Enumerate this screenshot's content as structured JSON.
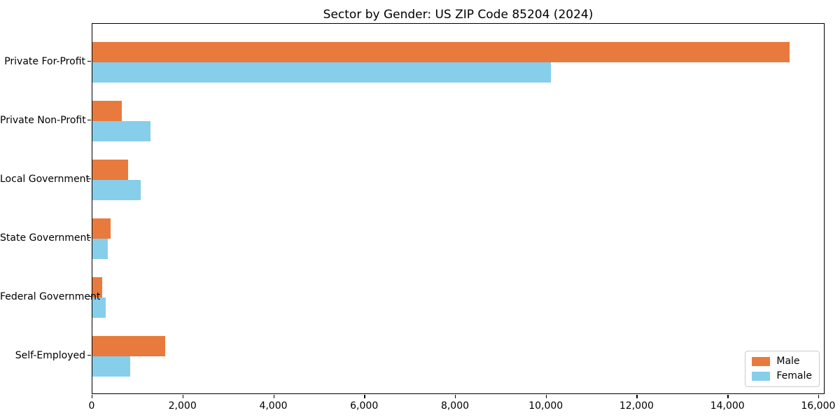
{
  "chart_data": {
    "type": "bar",
    "orientation": "horizontal",
    "title": "Sector by Gender: US ZIP Code 85204 (2024)",
    "categories": [
      "Private For-Profit",
      "Private Non-Profit",
      "Local Government",
      "State Government",
      "Federal Government",
      "Self-Employed"
    ],
    "series": [
      {
        "name": "Male",
        "color": "#E87A3D",
        "values": [
          15350,
          650,
          780,
          400,
          220,
          1600
        ]
      },
      {
        "name": "Female",
        "color": "#87CEEB",
        "values": [
          10090,
          1280,
          1060,
          340,
          290,
          830
        ]
      }
    ],
    "xlabel": "",
    "ylabel": "",
    "xlim": [
      0,
      16140
    ],
    "xticks": [
      0,
      2000,
      4000,
      6000,
      8000,
      10000,
      12000,
      14000,
      16000
    ],
    "xtick_labels": [
      "0",
      "2,000",
      "4,000",
      "6,000",
      "8,000",
      "10,000",
      "12,000",
      "14,000",
      "16,000"
    ],
    "grid": false,
    "background": "#ffffff",
    "legend": {
      "position": "lower right"
    }
  }
}
